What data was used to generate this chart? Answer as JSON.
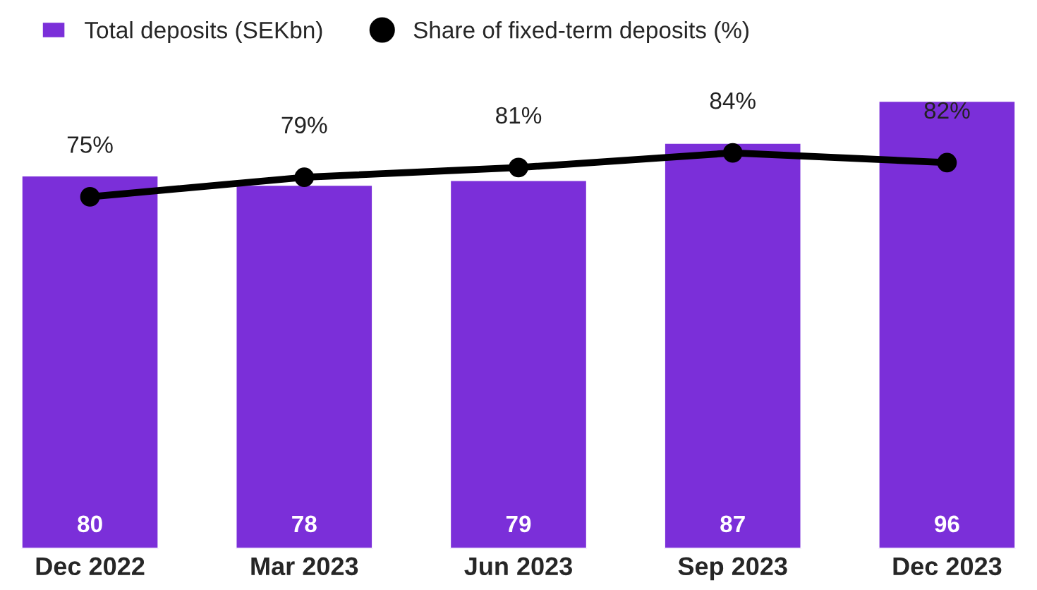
{
  "chart_data": {
    "type": "bar",
    "categories": [
      "Dec 2022",
      "Mar 2023",
      "Jun 2023",
      "Sep 2023",
      "Dec 2023"
    ],
    "series": [
      {
        "name": "Total deposits (SEKbn)",
        "color": "#7b2fd9",
        "values": [
          80,
          78,
          79,
          87,
          96
        ]
      },
      {
        "name": "Share of fixed-term deposits (%)",
        "type": "line",
        "axis": "y2",
        "color": "#000000",
        "values": [
          75,
          79,
          81,
          84,
          82
        ],
        "value_labels": [
          "75%",
          "79%",
          "81%",
          "84%",
          "82%"
        ]
      }
    ],
    "data_labels": true,
    "tick_labels": "x",
    "marker": "circle",
    "line_style": "solid",
    "grid": false,
    "legend": "top left"
  }
}
